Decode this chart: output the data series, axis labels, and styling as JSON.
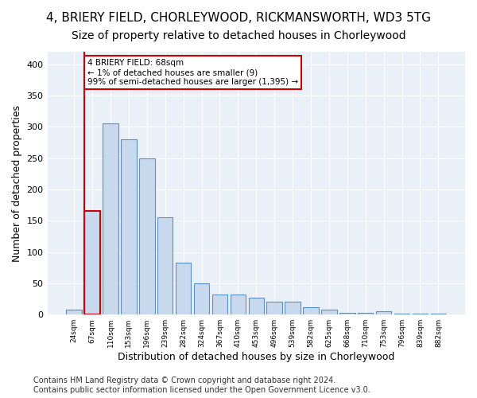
{
  "title1": "4, BRIERY FIELD, CHORLEYWOOD, RICKMANSWORTH, WD3 5TG",
  "title2": "Size of property relative to detached houses in Chorleywood",
  "xlabel": "Distribution of detached houses by size in Chorleywood",
  "ylabel": "Number of detached properties",
  "categories": [
    "24sqm",
    "67sqm",
    "110sqm",
    "153sqm",
    "196sqm",
    "239sqm",
    "282sqm",
    "324sqm",
    "367sqm",
    "410sqm",
    "453sqm",
    "496sqm",
    "539sqm",
    "582sqm",
    "625sqm",
    "668sqm",
    "710sqm",
    "753sqm",
    "796sqm",
    "839sqm",
    "882sqm"
  ],
  "values": [
    8,
    165,
    305,
    280,
    250,
    155,
    83,
    50,
    32,
    32,
    27,
    21,
    21,
    12,
    8,
    3,
    3,
    5,
    2,
    2,
    2
  ],
  "bar_color": "#c9d9ed",
  "bar_edge_color": "#5b8fc9",
  "highlight_bar_index": 1,
  "highlight_edge_color": "#cc0000",
  "annotation_text": "4 BRIERY FIELD: 68sqm\n← 1% of detached houses are smaller (9)\n99% of semi-detached houses are larger (1,395) →",
  "annotation_box_color": "#ffffff",
  "annotation_box_edge_color": "#cc0000",
  "vline_color": "#cc0000",
  "footer": "Contains HM Land Registry data © Crown copyright and database right 2024.\nContains public sector information licensed under the Open Government Licence v3.0.",
  "ylim": [
    0,
    420
  ],
  "yticks": [
    0,
    50,
    100,
    150,
    200,
    250,
    300,
    350,
    400
  ],
  "bg_color": "#eaf0f8",
  "title1_fontsize": 11,
  "title2_fontsize": 10,
  "xlabel_fontsize": 9,
  "ylabel_fontsize": 9,
  "footer_fontsize": 7
}
